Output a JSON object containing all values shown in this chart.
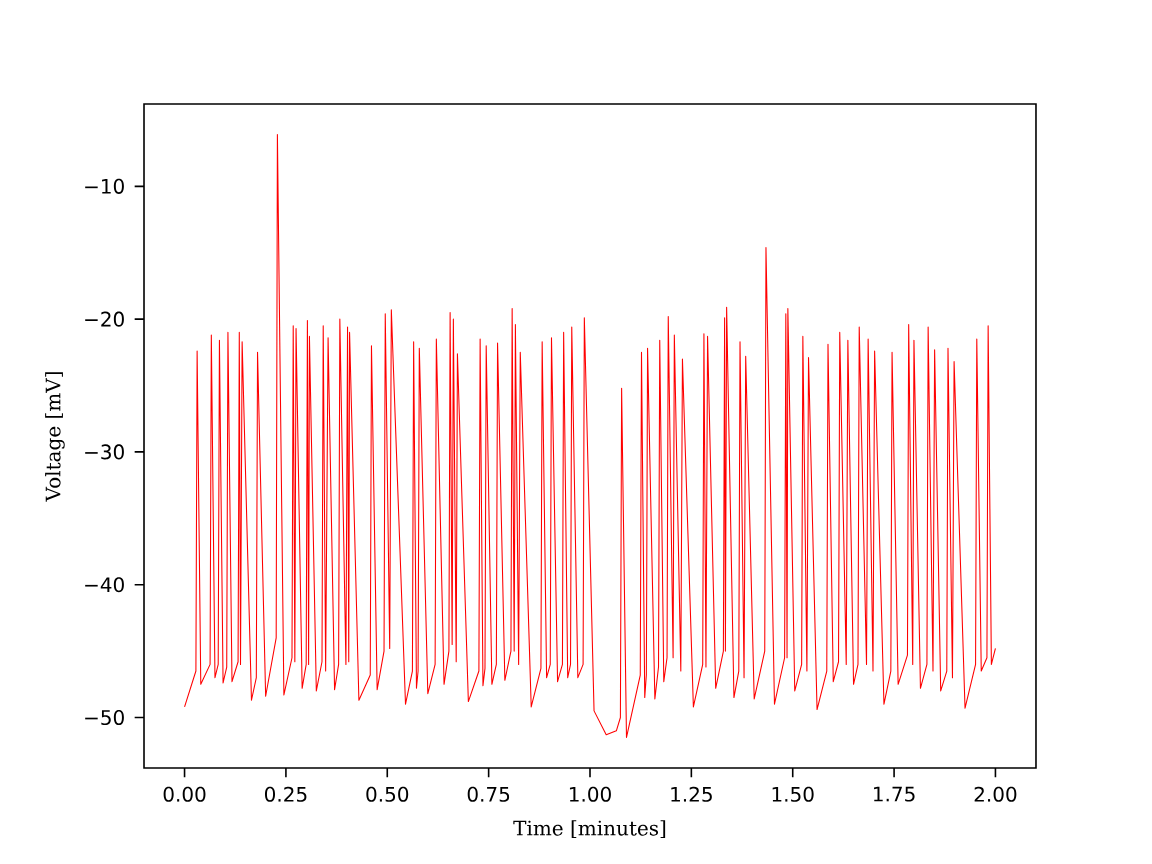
{
  "chart_data": {
    "type": "line",
    "xlabel": "Time [minutes]",
    "ylabel": "Voltage [mV]",
    "color": "#ff0000",
    "xlim": [
      -0.1,
      2.1
    ],
    "ylim": [
      -53.8,
      -3.8
    ],
    "xticks": [
      {
        "value": 0,
        "label": "0.00"
      },
      {
        "value": 0.25,
        "label": "0.25"
      },
      {
        "value": 0.5,
        "label": "0.50"
      },
      {
        "value": 0.75,
        "label": "0.75"
      },
      {
        "value": 1,
        "label": "1.00"
      },
      {
        "value": 1.25,
        "label": "1.25"
      },
      {
        "value": 1.5,
        "label": "1.50"
      },
      {
        "value": 1.75,
        "label": "1.75"
      },
      {
        "value": 2,
        "label": "2.00"
      }
    ],
    "yticks": [
      {
        "value": -50,
        "label": "−50"
      },
      {
        "value": -40,
        "label": "−40"
      },
      {
        "value": -30,
        "label": "−30"
      },
      {
        "value": -20,
        "label": "−20"
      },
      {
        "value": -10,
        "label": "−10"
      }
    ],
    "x": [
      0.0,
      0.028,
      0.031,
      0.04,
      0.063,
      0.066,
      0.075,
      0.083,
      0.086,
      0.095,
      0.104,
      0.107,
      0.117,
      0.132,
      0.135,
      0.138,
      0.142,
      0.165,
      0.177,
      0.18,
      0.2,
      0.226,
      0.229,
      0.245,
      0.265,
      0.268,
      0.272,
      0.275,
      0.29,
      0.3,
      0.303,
      0.306,
      0.308,
      0.325,
      0.339,
      0.342,
      0.348,
      0.354,
      0.37,
      0.38,
      0.383,
      0.398,
      0.402,
      0.405,
      0.407,
      0.43,
      0.458,
      0.461,
      0.475,
      0.492,
      0.495,
      0.506,
      0.51,
      0.545,
      0.562,
      0.565,
      0.572,
      0.576,
      0.579,
      0.6,
      0.618,
      0.621,
      0.64,
      0.652,
      0.655,
      0.66,
      0.663,
      0.67,
      0.673,
      0.7,
      0.726,
      0.729,
      0.736,
      0.741,
      0.744,
      0.758,
      0.769,
      0.772,
      0.79,
      0.805,
      0.808,
      0.813,
      0.816,
      0.824,
      0.828,
      0.855,
      0.879,
      0.882,
      0.893,
      0.902,
      0.905,
      0.92,
      0.932,
      0.935,
      0.945,
      0.952,
      0.955,
      0.97,
      0.983,
      0.986,
      1.01,
      1.04,
      1.065,
      1.075,
      1.078,
      1.09,
      1.124,
      1.127,
      1.135,
      1.139,
      1.142,
      1.16,
      1.169,
      1.172,
      1.182,
      1.19,
      1.193,
      1.205,
      1.208,
      1.224,
      1.228,
      1.255,
      1.278,
      1.281,
      1.286,
      1.29,
      1.31,
      1.329,
      1.332,
      1.334,
      1.337,
      1.355,
      1.367,
      1.37,
      1.38,
      1.384,
      1.405,
      1.431,
      1.434,
      1.455,
      1.48,
      1.483,
      1.486,
      1.488,
      1.505,
      1.522,
      1.525,
      1.535,
      1.539,
      1.56,
      1.584,
      1.587,
      1.6,
      1.613,
      1.616,
      1.632,
      1.636,
      1.65,
      1.661,
      1.664,
      1.682,
      1.686,
      1.698,
      1.702,
      1.725,
      1.742,
      1.745,
      1.76,
      1.783,
      1.786,
      1.796,
      1.799,
      1.815,
      1.831,
      1.834,
      1.846,
      1.85,
      1.865,
      1.88,
      1.883,
      1.894,
      1.898,
      1.925,
      1.951,
      1.954,
      1.965,
      1.979,
      1.982,
      1.99,
      2.0
    ],
    "values": [
      -49.2,
      -46.5,
      -22.4,
      -47.5,
      -46.0,
      -21.2,
      -47.0,
      -46.0,
      -21.6,
      -47.4,
      -46.2,
      -21.0,
      -47.3,
      -45.8,
      -21.0,
      -46.0,
      -21.7,
      -48.7,
      -47.0,
      -22.5,
      -48.4,
      -44.0,
      -6.1,
      -48.3,
      -45.5,
      -20.5,
      -45.8,
      -20.7,
      -47.8,
      -46.0,
      -20.1,
      -46.0,
      -21.3,
      -48.0,
      -45.8,
      -20.5,
      -46.5,
      -21.4,
      -47.9,
      -46.0,
      -20.0,
      -46.0,
      -20.6,
      -45.8,
      -21.0,
      -48.7,
      -46.8,
      -22.0,
      -47.9,
      -45.0,
      -19.6,
      -44.8,
      -19.3,
      -49.0,
      -46.5,
      -21.7,
      -47.8,
      -46.5,
      -22.2,
      -48.2,
      -46.0,
      -21.5,
      -47.5,
      -45.0,
      -19.5,
      -44.5,
      -20.0,
      -45.8,
      -22.6,
      -48.8,
      -46.5,
      -21.5,
      -47.6,
      -46.3,
      -22.0,
      -47.5,
      -46.0,
      -21.8,
      -47.2,
      -45.0,
      -19.2,
      -45.0,
      -20.4,
      -46.0,
      -22.5,
      -49.2,
      -46.3,
      -21.7,
      -47.0,
      -46.0,
      -21.4,
      -47.3,
      -46.0,
      -21.0,
      -47.0,
      -46.0,
      -20.6,
      -47.0,
      -46.0,
      -19.9,
      -49.5,
      -51.3,
      -51.0,
      -50.0,
      -25.2,
      -51.5,
      -46.8,
      -22.5,
      -48.5,
      -46.8,
      -22.2,
      -48.6,
      -46.2,
      -21.6,
      -47.3,
      -45.5,
      -19.8,
      -45.5,
      -21.2,
      -46.5,
      -23.0,
      -49.2,
      -46.0,
      -21.1,
      -46.2,
      -21.3,
      -47.8,
      -45.0,
      -19.9,
      -45.0,
      -19.1,
      -48.5,
      -46.5,
      -21.7,
      -47.0,
      -22.8,
      -48.6,
      -45.0,
      -14.6,
      -49.0,
      -45.5,
      -19.6,
      -45.5,
      -19.2,
      -48.0,
      -46.0,
      -21.3,
      -46.5,
      -22.9,
      -49.4,
      -46.5,
      -21.9,
      -47.3,
      -45.8,
      -21.0,
      -46.0,
      -21.6,
      -47.5,
      -46.0,
      -20.6,
      -46.0,
      -21.5,
      -46.5,
      -22.4,
      -49.0,
      -46.5,
      -22.5,
      -47.5,
      -45.3,
      -20.4,
      -46.0,
      -21.6,
      -47.8,
      -46.0,
      -20.6,
      -46.5,
      -22.3,
      -48.0,
      -46.5,
      -22.2,
      -47.0,
      -23.2,
      -49.3,
      -46.0,
      -21.5,
      -46.5,
      -45.5,
      -20.5,
      -46.0,
      -44.8
    ]
  }
}
